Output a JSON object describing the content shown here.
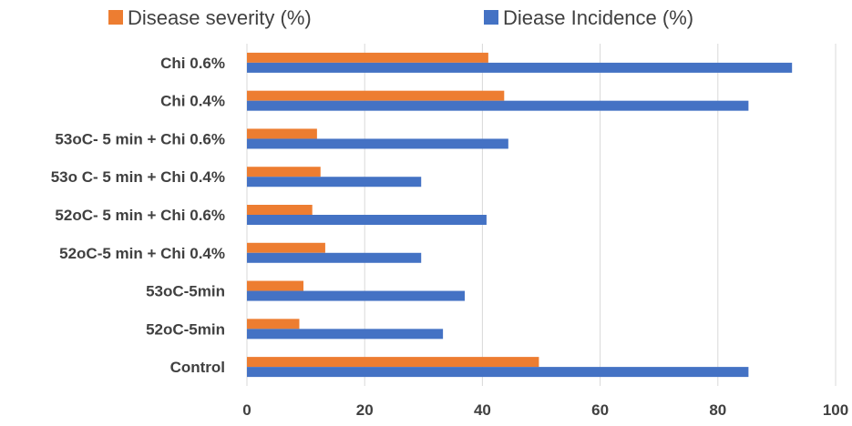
{
  "chart_data": {
    "type": "bar",
    "orientation": "horizontal",
    "title": "",
    "xlabel": "",
    "ylabel": "",
    "xlim": [
      0,
      100
    ],
    "x_ticks": [
      0,
      20,
      40,
      60,
      80,
      100
    ],
    "grid": true,
    "legend_position": "top",
    "categories": [
      "Chi 0.6%",
      "Chi 0.4%",
      "53oC- 5 min + Chi 0.6%",
      "53o C- 5 min + Chi 0.4%",
      "52oC- 5 min + Chi 0.6%",
      "52oC-5 min + Chi 0.4%",
      "53oC-5min",
      "52oC-5min",
      "Control"
    ],
    "series": [
      {
        "name": "Disease severity (%)",
        "color": "#ed7d31",
        "values": [
          41,
          43.7,
          11.9,
          12.5,
          11.1,
          13.3,
          9.6,
          8.9,
          49.6
        ]
      },
      {
        "name": "Diease Incidence (%)",
        "color": "#4472c4",
        "values": [
          92.6,
          85.2,
          44.4,
          29.6,
          40.7,
          29.6,
          37,
          33.3,
          85.2
        ]
      }
    ]
  }
}
